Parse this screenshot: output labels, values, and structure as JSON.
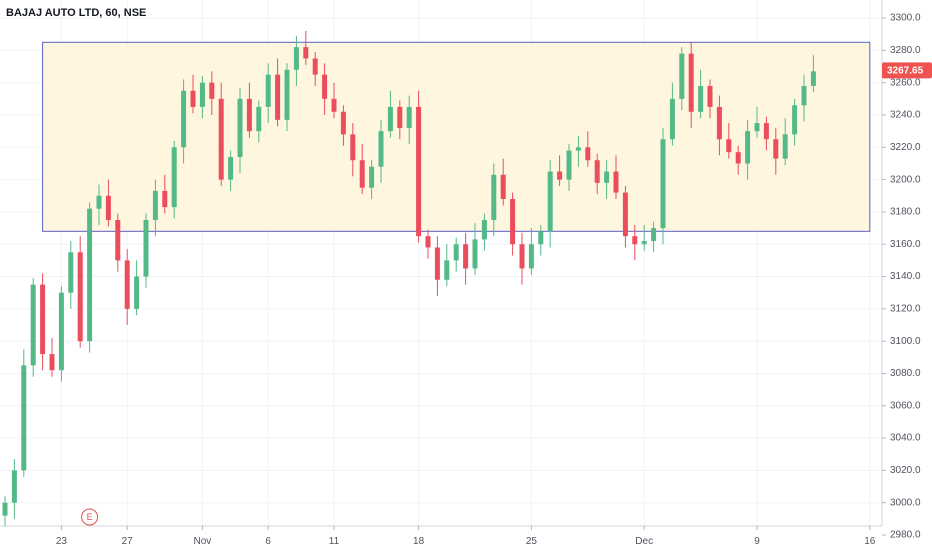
{
  "chart_data": {
    "type": "candlestick",
    "title": "BAJAJ AUTO LTD, 60, NSE",
    "ylim": [
      2980,
      3305
    ],
    "y_ticks": [
      2980,
      3000,
      3020,
      3040,
      3060,
      3080,
      3100,
      3120,
      3140,
      3160,
      3180,
      3200,
      3220,
      3240,
      3260,
      3280,
      3300
    ],
    "x_ticks": [
      {
        "label": "23",
        "index": 6
      },
      {
        "label": "27",
        "index": 13
      },
      {
        "label": "Nov",
        "index": 21
      },
      {
        "label": "6",
        "index": 28
      },
      {
        "label": "11",
        "index": 35
      },
      {
        "label": "18",
        "index": 44
      },
      {
        "label": "25",
        "index": 56
      },
      {
        "label": "Dec",
        "index": 68
      },
      {
        "label": "9",
        "index": 80
      },
      {
        "label": "16",
        "index": 92
      }
    ],
    "last_price": "3267.65",
    "current_value": 3267.65,
    "earnings_marker": {
      "label": "E",
      "index": 9
    },
    "zone": {
      "low": 3168,
      "high": 3285,
      "start_index": 4,
      "end_index": 92
    },
    "colors": {
      "up": "#53b987",
      "down": "#eb4d5c",
      "zone_fill": "#fff3d6",
      "zone_border": "#5b5fc7",
      "price_label": "#ef5350"
    },
    "closes": [
      3000,
      3020,
      3085,
      3135,
      3092,
      3082,
      3130,
      3155,
      3100,
      3182,
      3190,
      3175,
      3150,
      3120,
      3140,
      3175,
      3193,
      3183,
      3220,
      3255,
      3245,
      3260,
      3250,
      3200,
      3214,
      3250,
      3230,
      3245,
      3265,
      3237,
      3268,
      3282,
      3275,
      3265,
      3250,
      3242,
      3228,
      3212,
      3195,
      3208,
      3230,
      3245,
      3232,
      3245,
      3165,
      3158,
      3138,
      3150,
      3160,
      3145,
      3163,
      3175,
      3203,
      3188,
      3160,
      3145,
      3160,
      3168,
      3205,
      3200,
      3218,
      3220,
      3212,
      3198,
      3205,
      3192,
      3165,
      3160,
      3162,
      3170,
      3225,
      3250,
      3278,
      3242,
      3258,
      3245,
      3225,
      3217,
      3210,
      3230,
      3235,
      3225,
      3213,
      3228,
      3246,
      3258,
      3267
    ]
  }
}
